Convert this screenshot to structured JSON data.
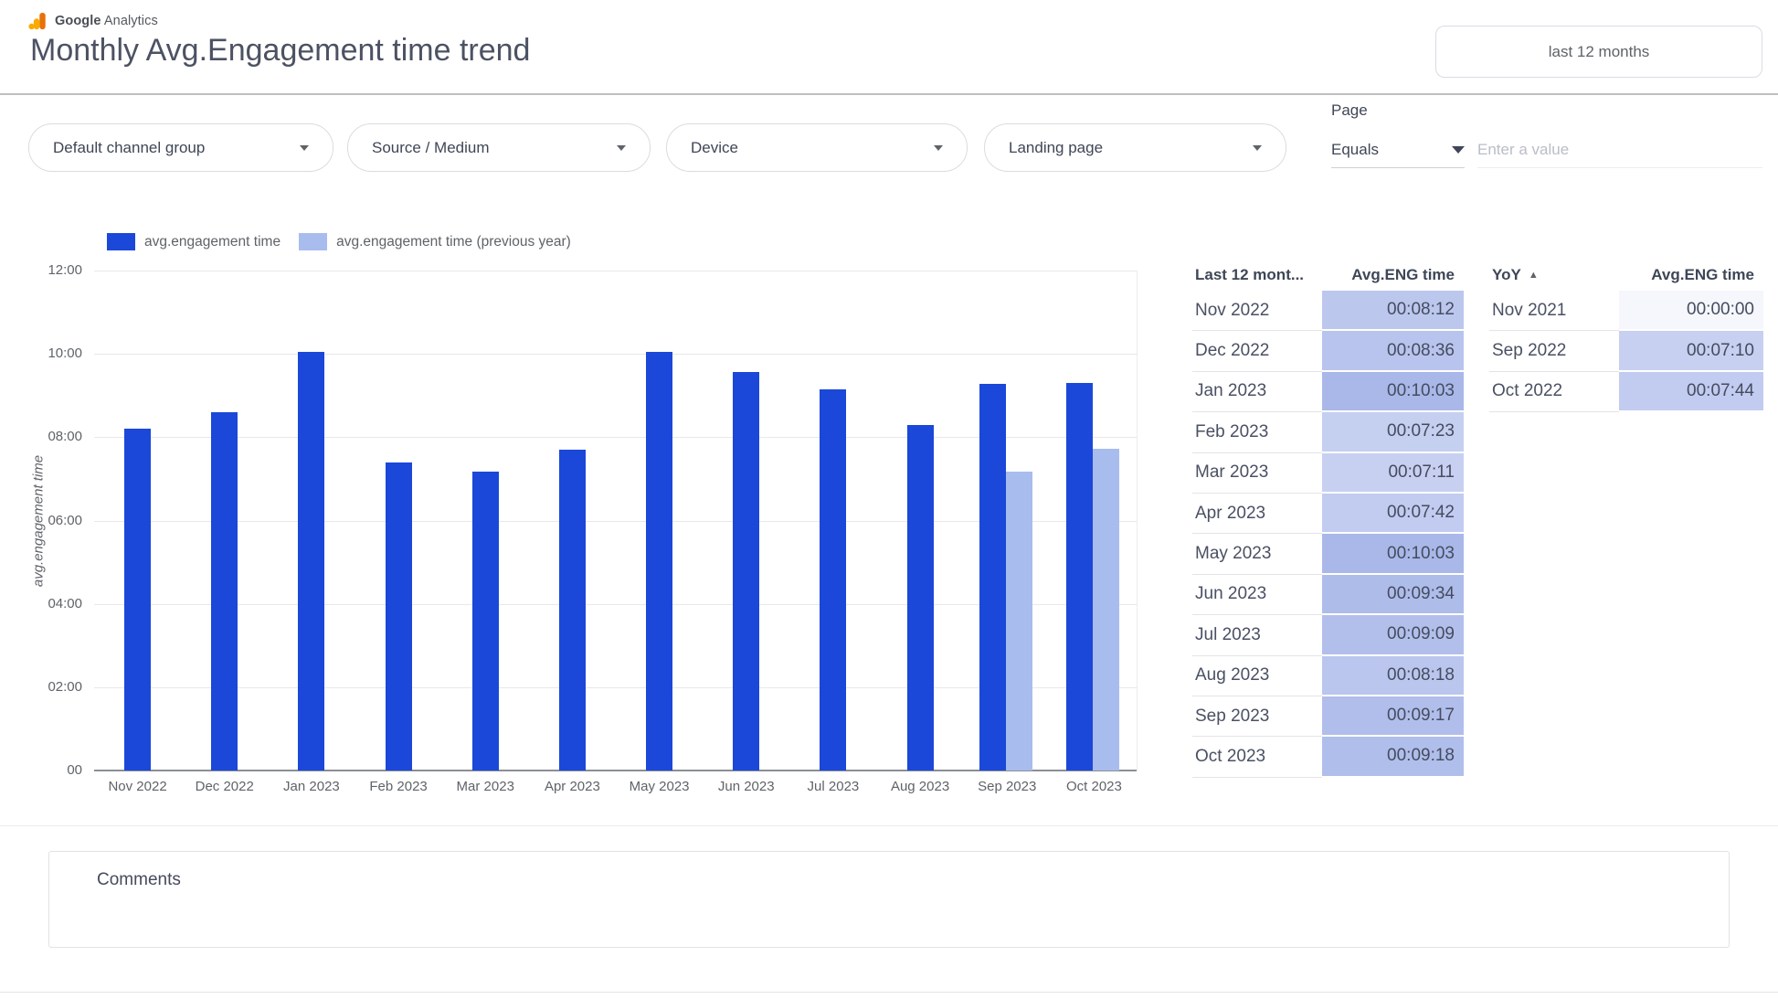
{
  "header": {
    "brand_google": "Google",
    "brand_analytics": "Analytics",
    "title": "Monthly Avg.Engagement time trend",
    "date_range_button": "last 12 months"
  },
  "filters": {
    "dropdowns": [
      {
        "label": "Default channel group"
      },
      {
        "label": "Source / Medium"
      },
      {
        "label": "Device"
      },
      {
        "label": "Landing page"
      }
    ],
    "page_filter": {
      "label": "Page",
      "operator": "Equals",
      "placeholder": "Enter a value"
    }
  },
  "chart_data": {
    "type": "bar",
    "title": "Monthly Avg.Engagement time trend",
    "xlabel": "",
    "ylabel": "avg.engagement time",
    "grid": true,
    "legend_position": "top-left",
    "ylim_minutes": [
      0,
      720
    ],
    "ytick_minutes": [
      0,
      120,
      240,
      360,
      480,
      600,
      720
    ],
    "ytick_labels": [
      "00",
      "02:00",
      "04:00",
      "06:00",
      "08:00",
      "10:00",
      "12:00"
    ],
    "categories": [
      "Nov 2022",
      "Dec 2022",
      "Jan 2023",
      "Feb 2023",
      "Mar 2023",
      "Apr 2023",
      "May 2023",
      "Jun 2023",
      "Jul 2023",
      "Aug 2023",
      "Sep 2023",
      "Oct 2023"
    ],
    "series": [
      {
        "name": "avg.engagement time",
        "color": "#1B48D8",
        "values_minutes": [
          492,
          516,
          603,
          443,
          431,
          462,
          603,
          574,
          549,
          498,
          557,
          558
        ],
        "values_display": [
          "00:08:12",
          "00:08:36",
          "00:10:03",
          "00:07:23",
          "00:07:11",
          "00:07:42",
          "00:10:03",
          "00:09:34",
          "00:09:09",
          "00:08:18",
          "00:09:17",
          "00:09:18"
        ]
      },
      {
        "name": "avg.engagement time (previous year)",
        "color": "#A8BCEE",
        "values_minutes": [
          null,
          null,
          null,
          null,
          null,
          null,
          null,
          null,
          null,
          null,
          430,
          464
        ],
        "values_display": [
          null,
          null,
          null,
          null,
          null,
          null,
          null,
          null,
          null,
          null,
          "00:07:10",
          "00:07:44"
        ]
      }
    ]
  },
  "monthly_table": {
    "header_month": "Last 12 mont...",
    "header_value": "Avg.ENG time",
    "rows": [
      {
        "month": "Nov 2022",
        "value": "00:08:12",
        "bg": "#BCC7EE"
      },
      {
        "month": "Dec 2022",
        "value": "00:08:36",
        "bg": "#B8C4ED"
      },
      {
        "month": "Jan 2023",
        "value": "00:10:03",
        "bg": "#A9B8E9"
      },
      {
        "month": "Feb 2023",
        "value": "00:07:23",
        "bg": "#C5CFF0"
      },
      {
        "month": "Mar 2023",
        "value": "00:07:11",
        "bg": "#C7D0F1"
      },
      {
        "month": "Apr 2023",
        "value": "00:07:42",
        "bg": "#C2CBF0"
      },
      {
        "month": "May 2023",
        "value": "00:10:03",
        "bg": "#A9B8E9"
      },
      {
        "month": "Jun 2023",
        "value": "00:09:34",
        "bg": "#AEBCEA"
      },
      {
        "month": "Jul 2023",
        "value": "00:09:09",
        "bg": "#B2BFEB"
      },
      {
        "month": "Aug 2023",
        "value": "00:08:18",
        "bg": "#BBC6EE"
      },
      {
        "month": "Sep 2023",
        "value": "00:09:17",
        "bg": "#B1BEEB"
      },
      {
        "month": "Oct 2023",
        "value": "00:09:18",
        "bg": "#B0BEEB"
      }
    ]
  },
  "yoy_table": {
    "header_month": "YoY",
    "sort_icon": "▲",
    "header_value": "Avg.ENG time",
    "rows": [
      {
        "month": "Nov 2021",
        "value": "00:00:00",
        "bg": "#F5F7FC"
      },
      {
        "month": "Sep 2022",
        "value": "00:07:10",
        "bg": "#C7D0F1"
      },
      {
        "month": "Oct 2022",
        "value": "00:07:44",
        "bg": "#C2CBF0"
      }
    ]
  },
  "comments": {
    "label": "Comments"
  },
  "colors": {
    "primary_bar": "#1B48D8",
    "previous_year_bar": "#A8BCEE",
    "logo_orange_dark": "#E8710A",
    "logo_orange_light": "#F9AB00"
  }
}
